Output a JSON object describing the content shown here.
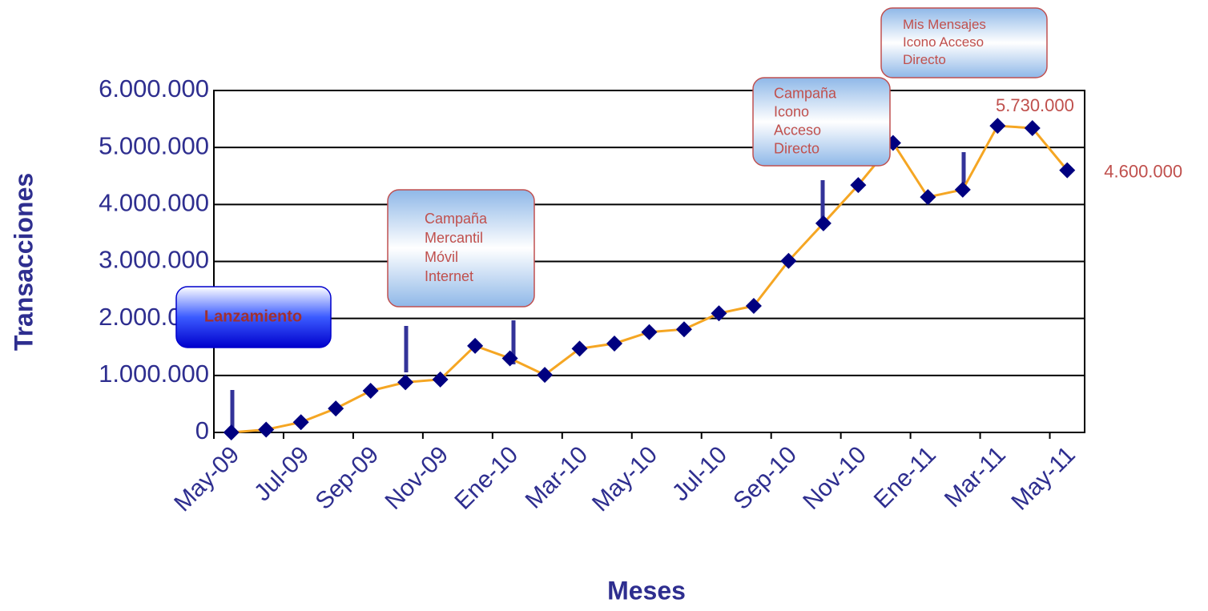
{
  "chart_data": {
    "type": "line",
    "x_label": "Meses",
    "y_label": "Transacciones",
    "categories": [
      "May-09",
      null,
      "Jul-09",
      null,
      "Sep-09",
      null,
      "Nov-09",
      null,
      "Ene-10",
      null,
      "Mar-10",
      null,
      "May-10",
      null,
      "Jul-10",
      null,
      "Sep-10",
      null,
      "Nov-10",
      null,
      "Ene-11",
      null,
      "Mar-11",
      null,
      "May-11"
    ],
    "values": [
      0,
      50000,
      180000,
      420000,
      730000,
      880000,
      930000,
      1520000,
      1300000,
      1010000,
      1470000,
      1560000,
      1760000,
      1810000,
      2090000,
      2220000,
      3010000,
      3670000,
      4340000,
      5080000,
      4130000,
      4260000,
      5380000,
      5340000,
      4600000
    ],
    "value_labels": [
      null,
      null,
      null,
      null,
      null,
      null,
      null,
      null,
      null,
      null,
      null,
      null,
      null,
      null,
      null,
      null,
      null,
      null,
      null,
      null,
      null,
      null,
      null,
      null,
      "4.600.000"
    ],
    "color": "#f5a623",
    "marker_color": "#000080",
    "ylim": [
      0,
      6000000
    ],
    "yticks": [
      0,
      {
        "value": 1000000,
        "label": "1.000.000"
      },
      {
        "value": 2000000,
        "label": "2.000.000"
      },
      {
        "value": 3000000,
        "label": "3.000.000"
      },
      {
        "value": 4000000,
        "label": "4.000.000"
      },
      {
        "value": 5000000,
        "label": "5.000.000"
      },
      {
        "value": 6000000,
        "label": "6.000.000"
      }
    ],
    "grid": true,
    "annotations": [
      "5.730.000"
    ],
    "callouts": [
      [
        "Lanzamiento"
      ],
      [
        "Campaña",
        "Mercantil",
        "Móvil",
        "Internet"
      ],
      [
        "Campaña",
        "Icono",
        "Acceso",
        "Directo"
      ],
      [
        "Mis Mensajes",
        "Icono Acceso",
        "Directo"
      ]
    ]
  }
}
